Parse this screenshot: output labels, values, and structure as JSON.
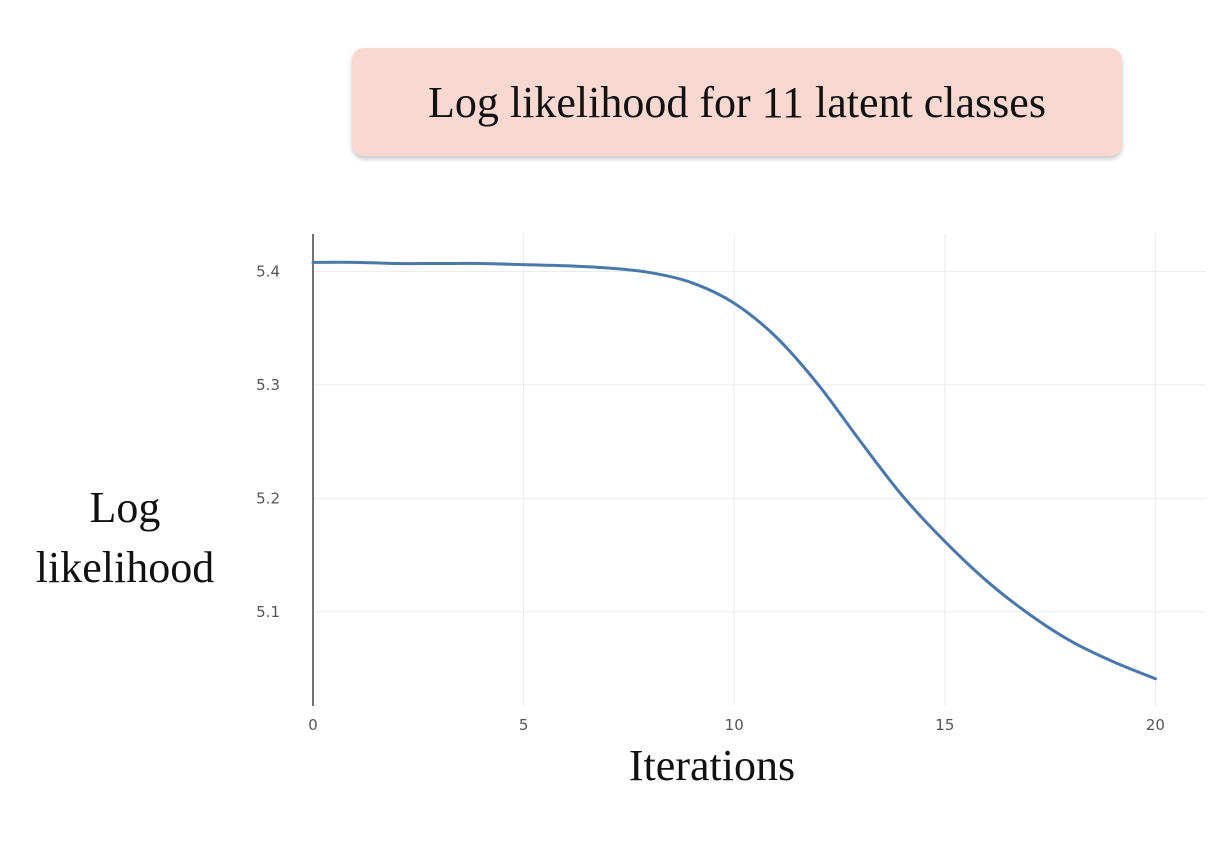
{
  "title": "Log likelihood for 11 latent classes",
  "chart_data": {
    "type": "line",
    "title": "Log likelihood for 11 latent classes",
    "xlabel": "Iterations",
    "ylabel": "Log likelihood",
    "xlim": [
      0,
      21.2
    ],
    "ylim": [
      5.017,
      5.433
    ],
    "xticks": [
      0,
      5,
      10,
      15,
      20
    ],
    "yticks": [
      5.1,
      5.2,
      5.3,
      5.4
    ],
    "grid": true,
    "series": [
      {
        "color": "#4a78ab",
        "x": [
          0,
          1,
          2,
          3,
          4,
          5,
          6,
          7,
          8,
          9,
          10,
          11,
          12,
          13,
          14,
          15,
          16,
          17,
          18,
          19,
          20
        ],
        "y": [
          5.408,
          5.408,
          5.407,
          5.407,
          5.407,
          5.406,
          5.405,
          5.403,
          5.399,
          5.39,
          5.372,
          5.342,
          5.3,
          5.25,
          5.202,
          5.162,
          5.127,
          5.098,
          5.074,
          5.056,
          5.041
        ]
      }
    ]
  }
}
